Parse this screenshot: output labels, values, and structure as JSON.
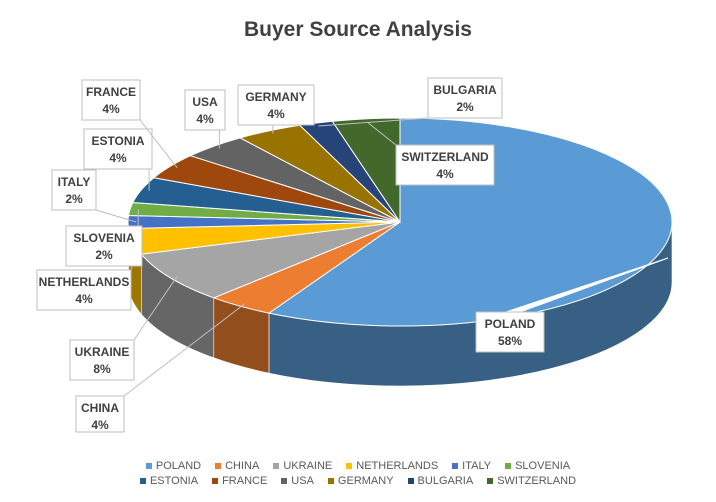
{
  "chart_data": {
    "type": "pie",
    "title": "Buyer Source Analysis",
    "categories": [
      "POLAND",
      "CHINA",
      "UKRAINE",
      "NETHERLANDS",
      "ITALY",
      "SLOVENIA",
      "ESTONIA",
      "FRANCE",
      "USA",
      "GERMANY",
      "BULGARIA",
      "SWITZERLAND"
    ],
    "values": [
      58,
      4,
      8,
      4,
      2,
      2,
      4,
      4,
      4,
      4,
      2,
      4
    ],
    "data_labels": [
      "58%",
      "4%",
      "8%",
      "4%",
      "2%",
      "2%",
      "4%",
      "4%",
      "4%",
      "4%",
      "2%",
      "4%"
    ],
    "colors": [
      "#5B9BD5",
      "#ED7D31",
      "#A5A5A5",
      "#FFC000",
      "#4472C4",
      "#70AD47",
      "#255E91",
      "#9E480E",
      "#636363",
      "#997300",
      "#264478",
      "#43682B"
    ],
    "legend_position": "bottom",
    "style": "3d"
  }
}
